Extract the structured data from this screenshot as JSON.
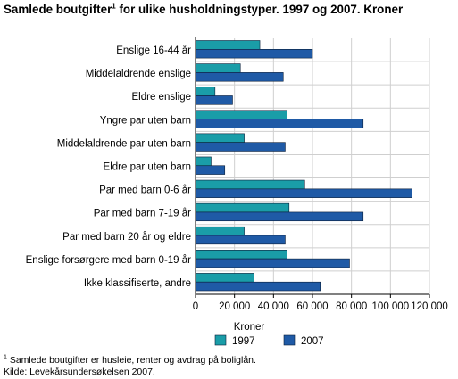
{
  "title": {
    "text": "Samlede boutgifter",
    "sup": "1",
    "rest": " for ulike husholdningstyper. 1997 og 2007. Kroner"
  },
  "chart_data": {
    "type": "bar",
    "orientation": "horizontal",
    "categories": [
      "Enslige 16-44 år",
      "Middelaldrende enslige",
      "Eldre enslige",
      "Yngre par uten barn",
      "Middelaldrende par uten barn",
      "Eldre par uten barn",
      "Par med barn 0-6 år",
      "Par med barn 7-19 år",
      "Par med barn 20 år og eldre",
      "Enslige forsørgere med barn 0-19 år",
      "Ikke klassifiserte, andre"
    ],
    "series": [
      {
        "name": "1997",
        "color": "#1a9da8",
        "values": [
          33000,
          23000,
          10000,
          47000,
          25000,
          8000,
          56000,
          48000,
          25000,
          47000,
          30000
        ]
      },
      {
        "name": "2007",
        "color": "#1f5aa6",
        "values": [
          60000,
          45000,
          19000,
          86000,
          46000,
          15000,
          111000,
          86000,
          46000,
          79000,
          64000
        ]
      }
    ],
    "xlabel": "Kroner",
    "xlim": [
      0,
      120000
    ],
    "xticks": [
      0,
      20000,
      40000,
      60000,
      80000,
      100000,
      120000
    ],
    "xtick_labels": [
      "0",
      "20 000",
      "40 000",
      "60 000",
      "80 000",
      "100 000",
      "120 000"
    ],
    "grid": true,
    "legend_position": "bottom-center"
  },
  "footnote": {
    "sup": "1",
    "text": " Samlede boutgifter er husleie, renter og avdrag på boliglån."
  },
  "source": "Kilde: Levekårsundersøkelsen 2007."
}
